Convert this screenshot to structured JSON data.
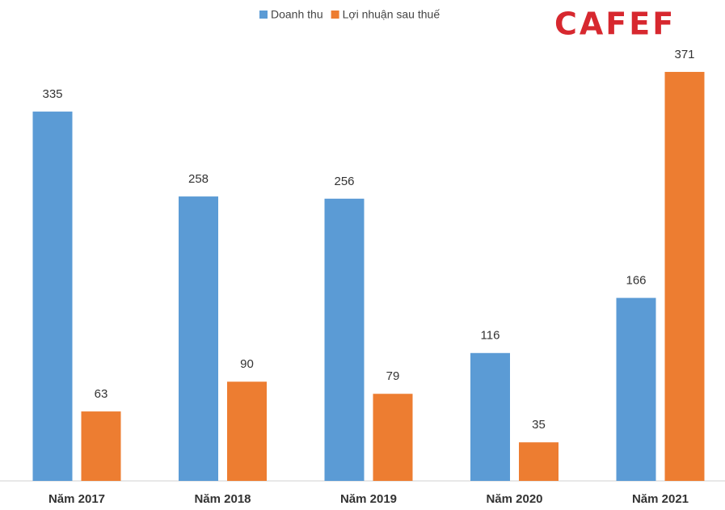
{
  "logo": "CAFEF",
  "chart_data": {
    "type": "bar",
    "categories": [
      "Năm 2017",
      "Năm 2018",
      "Năm 2019",
      "Năm 2020",
      "Năm 2021"
    ],
    "series": [
      {
        "name": "Doanh thu",
        "color": "#5b9bd5",
        "values": [
          335,
          258,
          256,
          116,
          166
        ]
      },
      {
        "name": "Lợi nhuận sau thuế",
        "color": "#ed7d31",
        "values": [
          63,
          90,
          79,
          35,
          371
        ]
      }
    ],
    "legend": "top"
  }
}
